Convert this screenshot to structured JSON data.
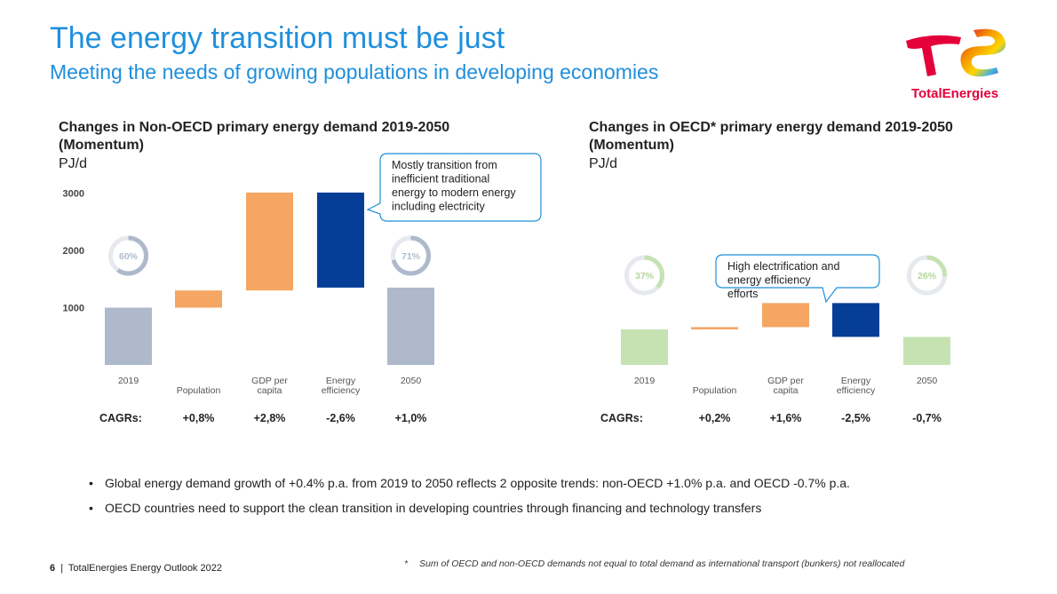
{
  "header": {
    "title": "The energy transition must be just",
    "subtitle": "Meeting the needs of growing populations in developing economies",
    "logo_text": "TotalEnergies"
  },
  "colors": {
    "title_blue": "#1f8fdc",
    "grey": "#aeb9cc",
    "orange": "#f5a663",
    "navy": "#063d96",
    "green": "#c7e2b2"
  },
  "chart_data": [
    {
      "type": "bar",
      "subtype": "waterfall",
      "title": "Changes in Non-OECD primary energy demand 2019-2050 (Momentum)",
      "unit": "PJ/d",
      "ylim": [
        0,
        3000
      ],
      "yticks": [
        "3000",
        "2000",
        "1000"
      ],
      "ytick_values": [
        3000,
        2000,
        1000
      ],
      "categories": [
        "2019",
        "Population",
        "GDP per capita",
        "Energy efficiency",
        "2050"
      ],
      "bars": [
        {
          "label": "2019",
          "from": 0,
          "to": 1000,
          "color": "grey"
        },
        {
          "label": "Population",
          "from": 1000,
          "to": 1300,
          "color": "orange"
        },
        {
          "label": "GDP per capita",
          "from": 1300,
          "to": 3010,
          "color": "orange"
        },
        {
          "label": "Energy efficiency",
          "from": 1350,
          "to": 3010,
          "color": "navy"
        },
        {
          "label": "2050",
          "from": 0,
          "to": 1350,
          "color": "grey"
        }
      ],
      "share_circles": [
        {
          "label": "60%",
          "value": 60,
          "bar_index": 0
        },
        {
          "label": "71%",
          "value": 71,
          "bar_index": 4
        }
      ],
      "cagr_label": "CAGRs:",
      "cagrs": [
        "+0,8%",
        "+2,8%",
        "-2,6%",
        "+1,0%"
      ],
      "callout": "Mostly transition from inefficient traditional energy to modern energy including electricity"
    },
    {
      "type": "bar",
      "subtype": "waterfall",
      "title": "Changes in OECD* primary energy demand 2019-2050 (Momentum)",
      "unit": "PJ/d",
      "ylim": [
        0,
        3000
      ],
      "categories": [
        "2019",
        "Population",
        "GDP per capita",
        "Energy efficiency",
        "2050"
      ],
      "bars": [
        {
          "label": "2019",
          "from": 0,
          "to": 620,
          "color": "green"
        },
        {
          "label": "Population",
          "from": 620,
          "to": 660,
          "color": "orange"
        },
        {
          "label": "GDP per capita",
          "from": 660,
          "to": 1080,
          "color": "orange"
        },
        {
          "label": "Energy efficiency",
          "from": 490,
          "to": 1080,
          "color": "navy"
        },
        {
          "label": "2050",
          "from": 0,
          "to": 490,
          "color": "green"
        }
      ],
      "share_circles": [
        {
          "label": "37%",
          "value": 37,
          "bar_index": 0
        },
        {
          "label": "26%",
          "value": 26,
          "bar_index": 4
        }
      ],
      "cagr_label": "CAGRs:",
      "cagrs": [
        "+0,2%",
        "+1,6%",
        "-2,5%",
        "-0,7%"
      ],
      "callout": "High electrification and energy efficiency efforts"
    }
  ],
  "bullets": [
    "Global energy demand growth of +0.4% p.a. from 2019 to 2050 reflects 2 opposite trends:  non-OECD +1.0% p.a. and OECD -0.7% p.a.",
    "OECD countries need to support the clean transition in developing countries through financing and technology transfers"
  ],
  "bullet_symbol": "•",
  "footer": {
    "page": "6",
    "separator": "|",
    "text": "TotalEnergies Energy Outlook 2022",
    "footnote_mark": "*",
    "footnote": "Sum of OECD and non-OECD demands not equal to total demand as international transport (bunkers) not reallocated"
  }
}
